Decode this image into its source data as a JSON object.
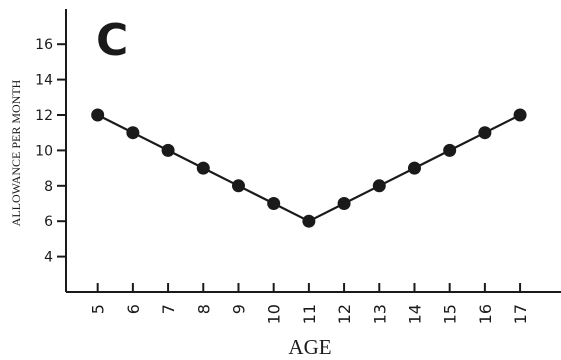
{
  "panel_label": "C",
  "chart_data": {
    "type": "line",
    "xlabel": "AGE",
    "ylabel": "ALLOWANCE PER MONTH",
    "x": [
      5,
      6,
      7,
      8,
      9,
      10,
      11,
      12,
      13,
      14,
      15,
      16,
      17
    ],
    "series": [
      {
        "values": [
          12,
          11,
          10,
          9,
          8,
          7,
          6,
          7,
          8,
          9,
          10,
          11,
          12
        ]
      }
    ],
    "yticks": [
      4,
      6,
      8,
      10,
      12,
      14,
      16
    ],
    "ylim": [
      2,
      18
    ],
    "xlim": [
      4.1,
      18
    ],
    "grid": false,
    "colors": {
      "line": "#1a1a1a",
      "marker": "#1a1a1a",
      "axis": "#1a1a1a"
    }
  }
}
